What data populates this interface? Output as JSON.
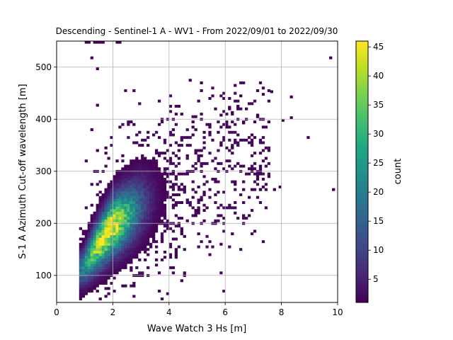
{
  "chart_data": {
    "type": "heatmap",
    "title": "Descending - Sentinel-1 A - WV1 - From 2022/09/01 to 2022/09/30",
    "xlabel": "Wave Watch 3 Hs [m]",
    "ylabel": "S-1 A Azimuth Cut-off wavelength [m]",
    "xlim": [
      0,
      10
    ],
    "ylim": [
      48,
      550
    ],
    "xticks": [
      0,
      2,
      4,
      6,
      8,
      10
    ],
    "yticks": [
      100,
      200,
      300,
      400,
      500
    ],
    "grid": true,
    "bin_width_x": 0.1,
    "bin_width_y": 5,
    "colorbar": {
      "label": "count",
      "min": 1,
      "max": 46,
      "ticks": [
        5,
        10,
        15,
        20,
        25,
        30,
        35,
        40,
        45
      ],
      "colormap": "viridis"
    },
    "density_model": {
      "ridge_hs": [
        0.9,
        1.5,
        2.0,
        3.0,
        4.0,
        5.0,
        6.0,
        7.0
      ],
      "ridge_center_m": [
        112,
        160,
        195,
        235,
        265,
        295,
        318,
        340
      ],
      "ridge_spread_m": [
        22,
        30,
        35,
        40,
        42,
        42,
        40,
        35
      ],
      "peak_hs": 1.85,
      "peak_cutoff_m": 180,
      "peak_count": 46
    },
    "outliers": [
      {
        "x": 1.05,
        "y": 548
      },
      {
        "x": 1.15,
        "y": 548
      },
      {
        "x": 1.35,
        "y": 548
      },
      {
        "x": 1.45,
        "y": 548
      },
      {
        "x": 1.55,
        "y": 548
      },
      {
        "x": 1.65,
        "y": 548
      },
      {
        "x": 2.15,
        "y": 548
      },
      {
        "x": 2.25,
        "y": 548
      },
      {
        "x": 1.25,
        "y": 518
      },
      {
        "x": 1.45,
        "y": 497
      },
      {
        "x": 1.45,
        "y": 427
      },
      {
        "x": 1.25,
        "y": 380
      },
      {
        "x": 1.75,
        "y": 345
      },
      {
        "x": 1.45,
        "y": 340
      },
      {
        "x": 9.75,
        "y": 518
      },
      {
        "x": 9.85,
        "y": 265
      },
      {
        "x": 8.95,
        "y": 365
      },
      {
        "x": 7.95,
        "y": 270
      },
      {
        "x": 7.75,
        "y": 265
      },
      {
        "x": 7.25,
        "y": 265
      },
      {
        "x": 7.35,
        "y": 448
      },
      {
        "x": 7.65,
        "y": 453
      },
      {
        "x": 8.05,
        "y": 398
      },
      {
        "x": 8.35,
        "y": 443
      },
      {
        "x": 8.35,
        "y": 403
      },
      {
        "x": 6.15,
        "y": 423
      },
      {
        "x": 6.25,
        "y": 413
      },
      {
        "x": 5.85,
        "y": 408
      },
      {
        "x": 4.85,
        "y": 395
      },
      {
        "x": 7.15,
        "y": 408
      },
      {
        "x": 6.65,
        "y": 393
      },
      {
        "x": 2.75,
        "y": 390
      }
    ]
  }
}
